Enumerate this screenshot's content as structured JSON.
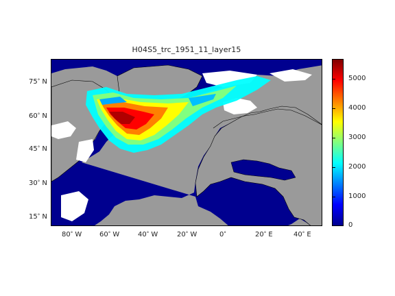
{
  "title": "H04S5_trc_1951_11_layer15",
  "lat_ticks": [
    {
      "deg": "75",
      "hem": "N"
    },
    {
      "deg": "60",
      "hem": "N"
    },
    {
      "deg": "45",
      "hem": "N"
    },
    {
      "deg": "30",
      "hem": "N"
    },
    {
      "deg": "15",
      "hem": "N"
    }
  ],
  "lon_ticks": [
    {
      "deg": "80",
      "hem": "W"
    },
    {
      "deg": "60",
      "hem": "W"
    },
    {
      "deg": "40",
      "hem": "W"
    },
    {
      "deg": "20",
      "hem": "W"
    },
    {
      "deg": "0",
      "hem": ""
    },
    {
      "deg": "20",
      "hem": "E"
    },
    {
      "deg": "40",
      "hem": "E"
    }
  ],
  "colorbar": {
    "min": 0,
    "max": 5600,
    "ticks": [
      "0",
      "1000",
      "2000",
      "3000",
      "4000",
      "5000"
    ]
  },
  "colors": {
    "ocean_low": "#00008f",
    "land": "#9a9a9a",
    "no_data": "#ffffff"
  }
}
